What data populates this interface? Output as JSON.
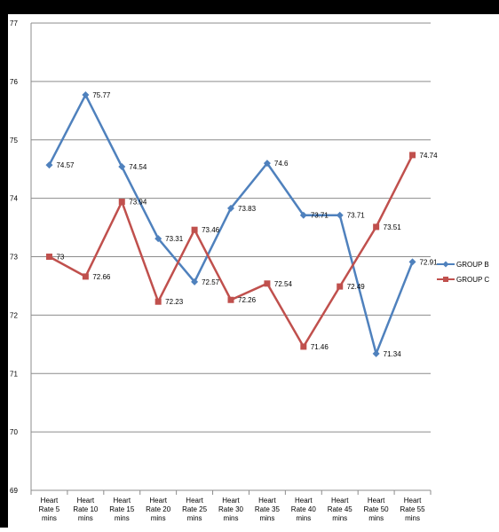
{
  "chart_data": {
    "type": "line",
    "categories": [
      [
        "Heart",
        "Rate 5",
        "mins"
      ],
      [
        "Heart",
        "Rate 10",
        "mins"
      ],
      [
        "Heart",
        "Rate 15",
        "mins"
      ],
      [
        "Heart",
        "Rate 20",
        "mins"
      ],
      [
        "Heart",
        "Rate 25",
        "mins"
      ],
      [
        "Heart",
        "Rate 30",
        "mins"
      ],
      [
        "Heart",
        "Rate 35",
        "mins"
      ],
      [
        "Heart",
        "Rate 40",
        "mins"
      ],
      [
        "Heart",
        "Rate 45",
        "mins"
      ],
      [
        "Heart",
        "Rate 50",
        "mins"
      ],
      [
        "Heart",
        "Rate 55",
        "mins"
      ]
    ],
    "series": [
      {
        "name": "GROUP B",
        "color": "#4f81bd",
        "marker": "diamond",
        "values": [
          74.57,
          75.77,
          74.54,
          73.31,
          72.57,
          73.83,
          74.6,
          73.71,
          73.71,
          71.34,
          72.91
        ],
        "labels": [
          "74.57",
          "75.77",
          "74.54",
          "73.31",
          "72.57",
          "73.83",
          "74.6",
          "73.71",
          "73.71",
          "71.34",
          "72.91"
        ]
      },
      {
        "name": "GROUP C",
        "color": "#c0504d",
        "marker": "square",
        "values": [
          73,
          72.66,
          73.94,
          72.23,
          73.46,
          72.26,
          72.54,
          71.46,
          72.49,
          73.51,
          74.74
        ],
        "labels": [
          "73",
          "72.66",
          "73.94",
          "72.23",
          "73.46",
          "72.26",
          "72.54",
          "71.46",
          "72.49",
          "73.51",
          "74.74"
        ]
      }
    ],
    "ylim": [
      69,
      77
    ],
    "yticks": [
      "69",
      "70",
      "71",
      "72",
      "73",
      "74",
      "75",
      "76",
      "77"
    ],
    "grid": true,
    "legend": "right",
    "title": "",
    "xlabel": "",
    "ylabel": ""
  }
}
